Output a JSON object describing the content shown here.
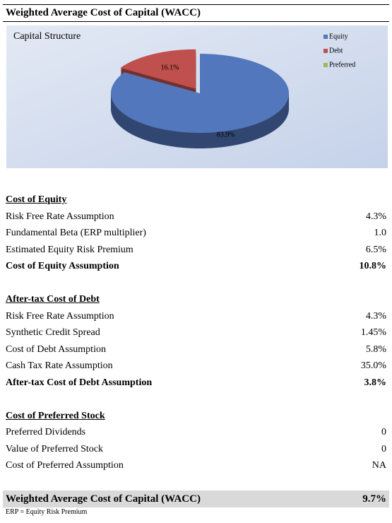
{
  "header": {
    "title": "Weighted Average Cost of Capital (WACC)"
  },
  "chart_data": {
    "type": "pie",
    "title": "Capital Structure",
    "categories": [
      "Equity",
      "Debt",
      "Preferred"
    ],
    "values": [
      83.9,
      16.1,
      0
    ],
    "value_labels": [
      "83.9%",
      "16.1%",
      null
    ],
    "colors": [
      "#5277bd",
      "#c0504d",
      "#9bbb59"
    ],
    "legend": "right"
  },
  "sections": [
    {
      "title": "Cost of Equity",
      "rows": [
        {
          "label": "Risk Free Rate Assumption",
          "value": "4.3%"
        },
        {
          "label": "Fundamental Beta (ERP multiplier)",
          "value": "1.0"
        },
        {
          "label": "Estimated Equity Risk Premium",
          "value": "6.5%"
        },
        {
          "label": "Cost of Equity Assumption",
          "value": "10.8%"
        }
      ]
    },
    {
      "title": "After-tax Cost of Debt",
      "rows": [
        {
          "label": "Risk Free Rate Assumption",
          "value": "4.3%"
        },
        {
          "label": "Synthetic Credit Spread",
          "value": "1.45%"
        },
        {
          "label": "Cost of Debt Assumption",
          "value": "5.8%"
        },
        {
          "label": "Cash Tax Rate Assumption",
          "value": "35.0%"
        },
        {
          "label": "After-tax Cost of Debt Assumption",
          "value": "3.8%"
        }
      ]
    },
    {
      "title": "Cost of Preferred Stock",
      "rows": [
        {
          "label": "Preferred Dividends",
          "value": "0"
        },
        {
          "label": "Value of Preferred Stock",
          "value": "0"
        },
        {
          "label": "Cost of Preferred Assumption",
          "value": "NA"
        }
      ]
    }
  ],
  "total": {
    "label": "Weighted Average Cost of Capital (WACC)",
    "value": "9.7%"
  },
  "footnote": "ERP = Equity Risk Premium"
}
